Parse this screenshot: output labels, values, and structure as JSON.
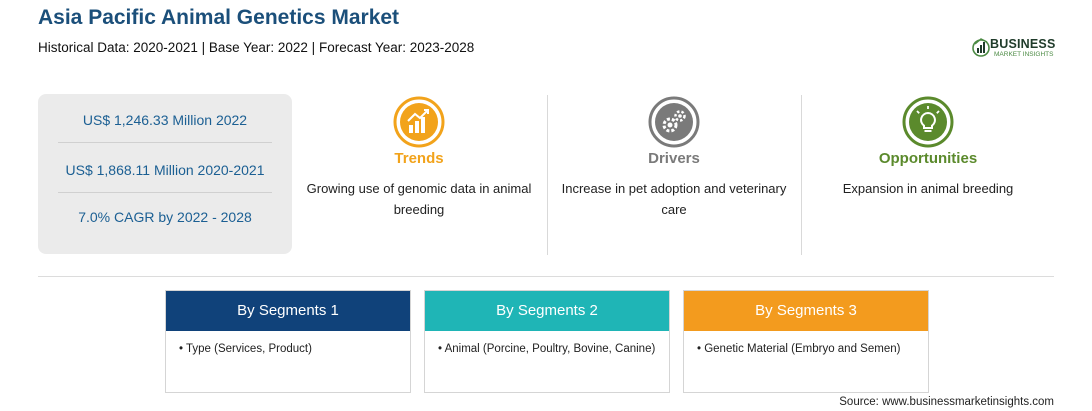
{
  "header": {
    "title": "Asia Pacific Animal Genetics Market",
    "subtitle": "Historical Data: 2020-2021 | Base Year: 2022 | Forecast Year: 2023-2028"
  },
  "logo": {
    "main": "BUSINESS",
    "sub": "MARKET INSIGHTS"
  },
  "stats": [
    "US$ 1,246.33 Million 2022",
    "US$ 1,868.11 Million 2020-2021",
    "7.0% CAGR by 2022 - 2028"
  ],
  "features": [
    {
      "title": "Trends",
      "description": "Growing use of genomic data in animal breeding",
      "color": "#f2a31b",
      "icon": "chart-growth-icon"
    },
    {
      "title": "Drivers",
      "description": "Increase in pet adoption and veterinary care",
      "color": "#7a7a7a",
      "icon": "gears-icon"
    },
    {
      "title": "Opportunities",
      "description": "Expansion in animal breeding",
      "color": "#5b8a2c",
      "icon": "lightbulb-icon"
    }
  ],
  "segments": [
    {
      "label": "By Segments 1",
      "item": "• Type (Services, Product)",
      "color": "#10427a"
    },
    {
      "label": "By Segments 2",
      "item": "• Animal (Porcine, Poultry, Bovine, Canine)",
      "color": "#1fb5b6"
    },
    {
      "label": "By Segments 3",
      "item": "• Genetic Material (Embryo and Semen)",
      "color": "#f39b1e"
    }
  ],
  "source": "Source: www.businessmarketinsights.com"
}
